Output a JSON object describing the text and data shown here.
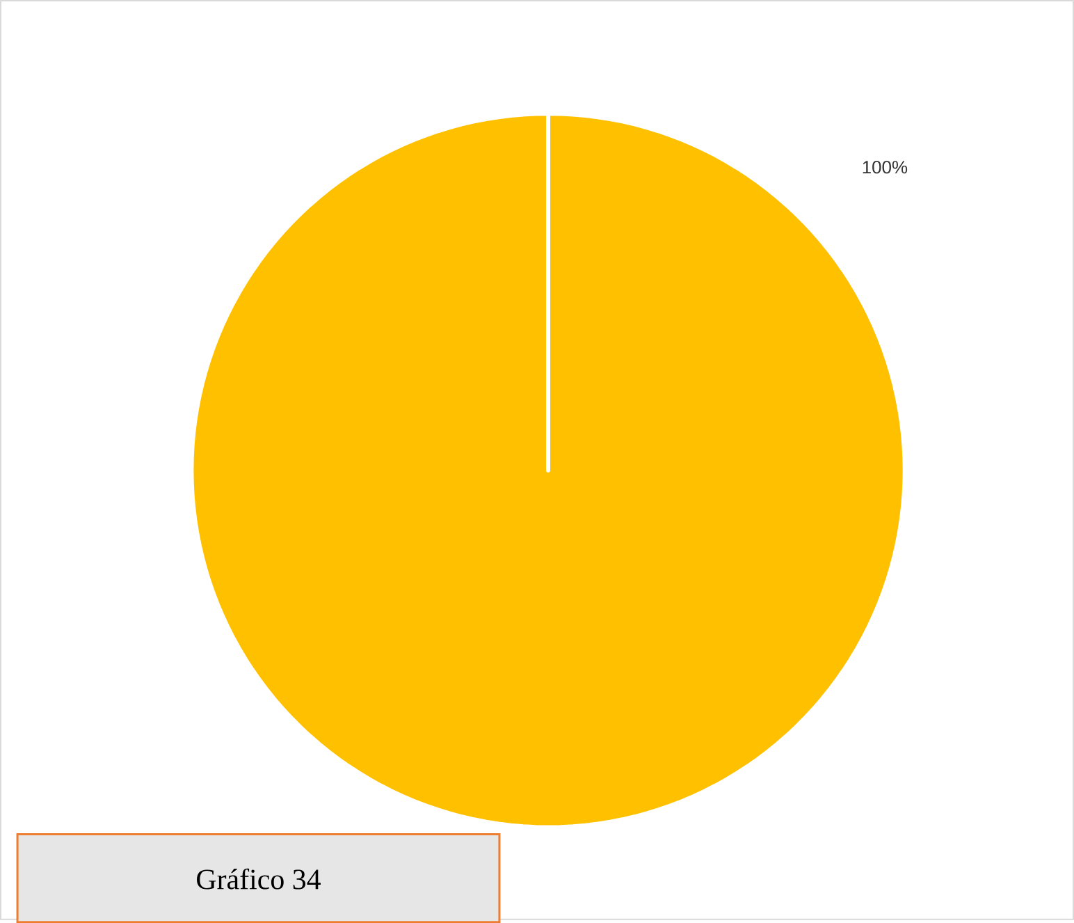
{
  "chart_data": {
    "type": "pie",
    "categories": [
      null
    ],
    "values": [
      100
    ],
    "colors": [
      "#ffc000"
    ],
    "value_labels": [
      "100%"
    ],
    "annotations": [
      "Gráfico 34"
    ]
  }
}
